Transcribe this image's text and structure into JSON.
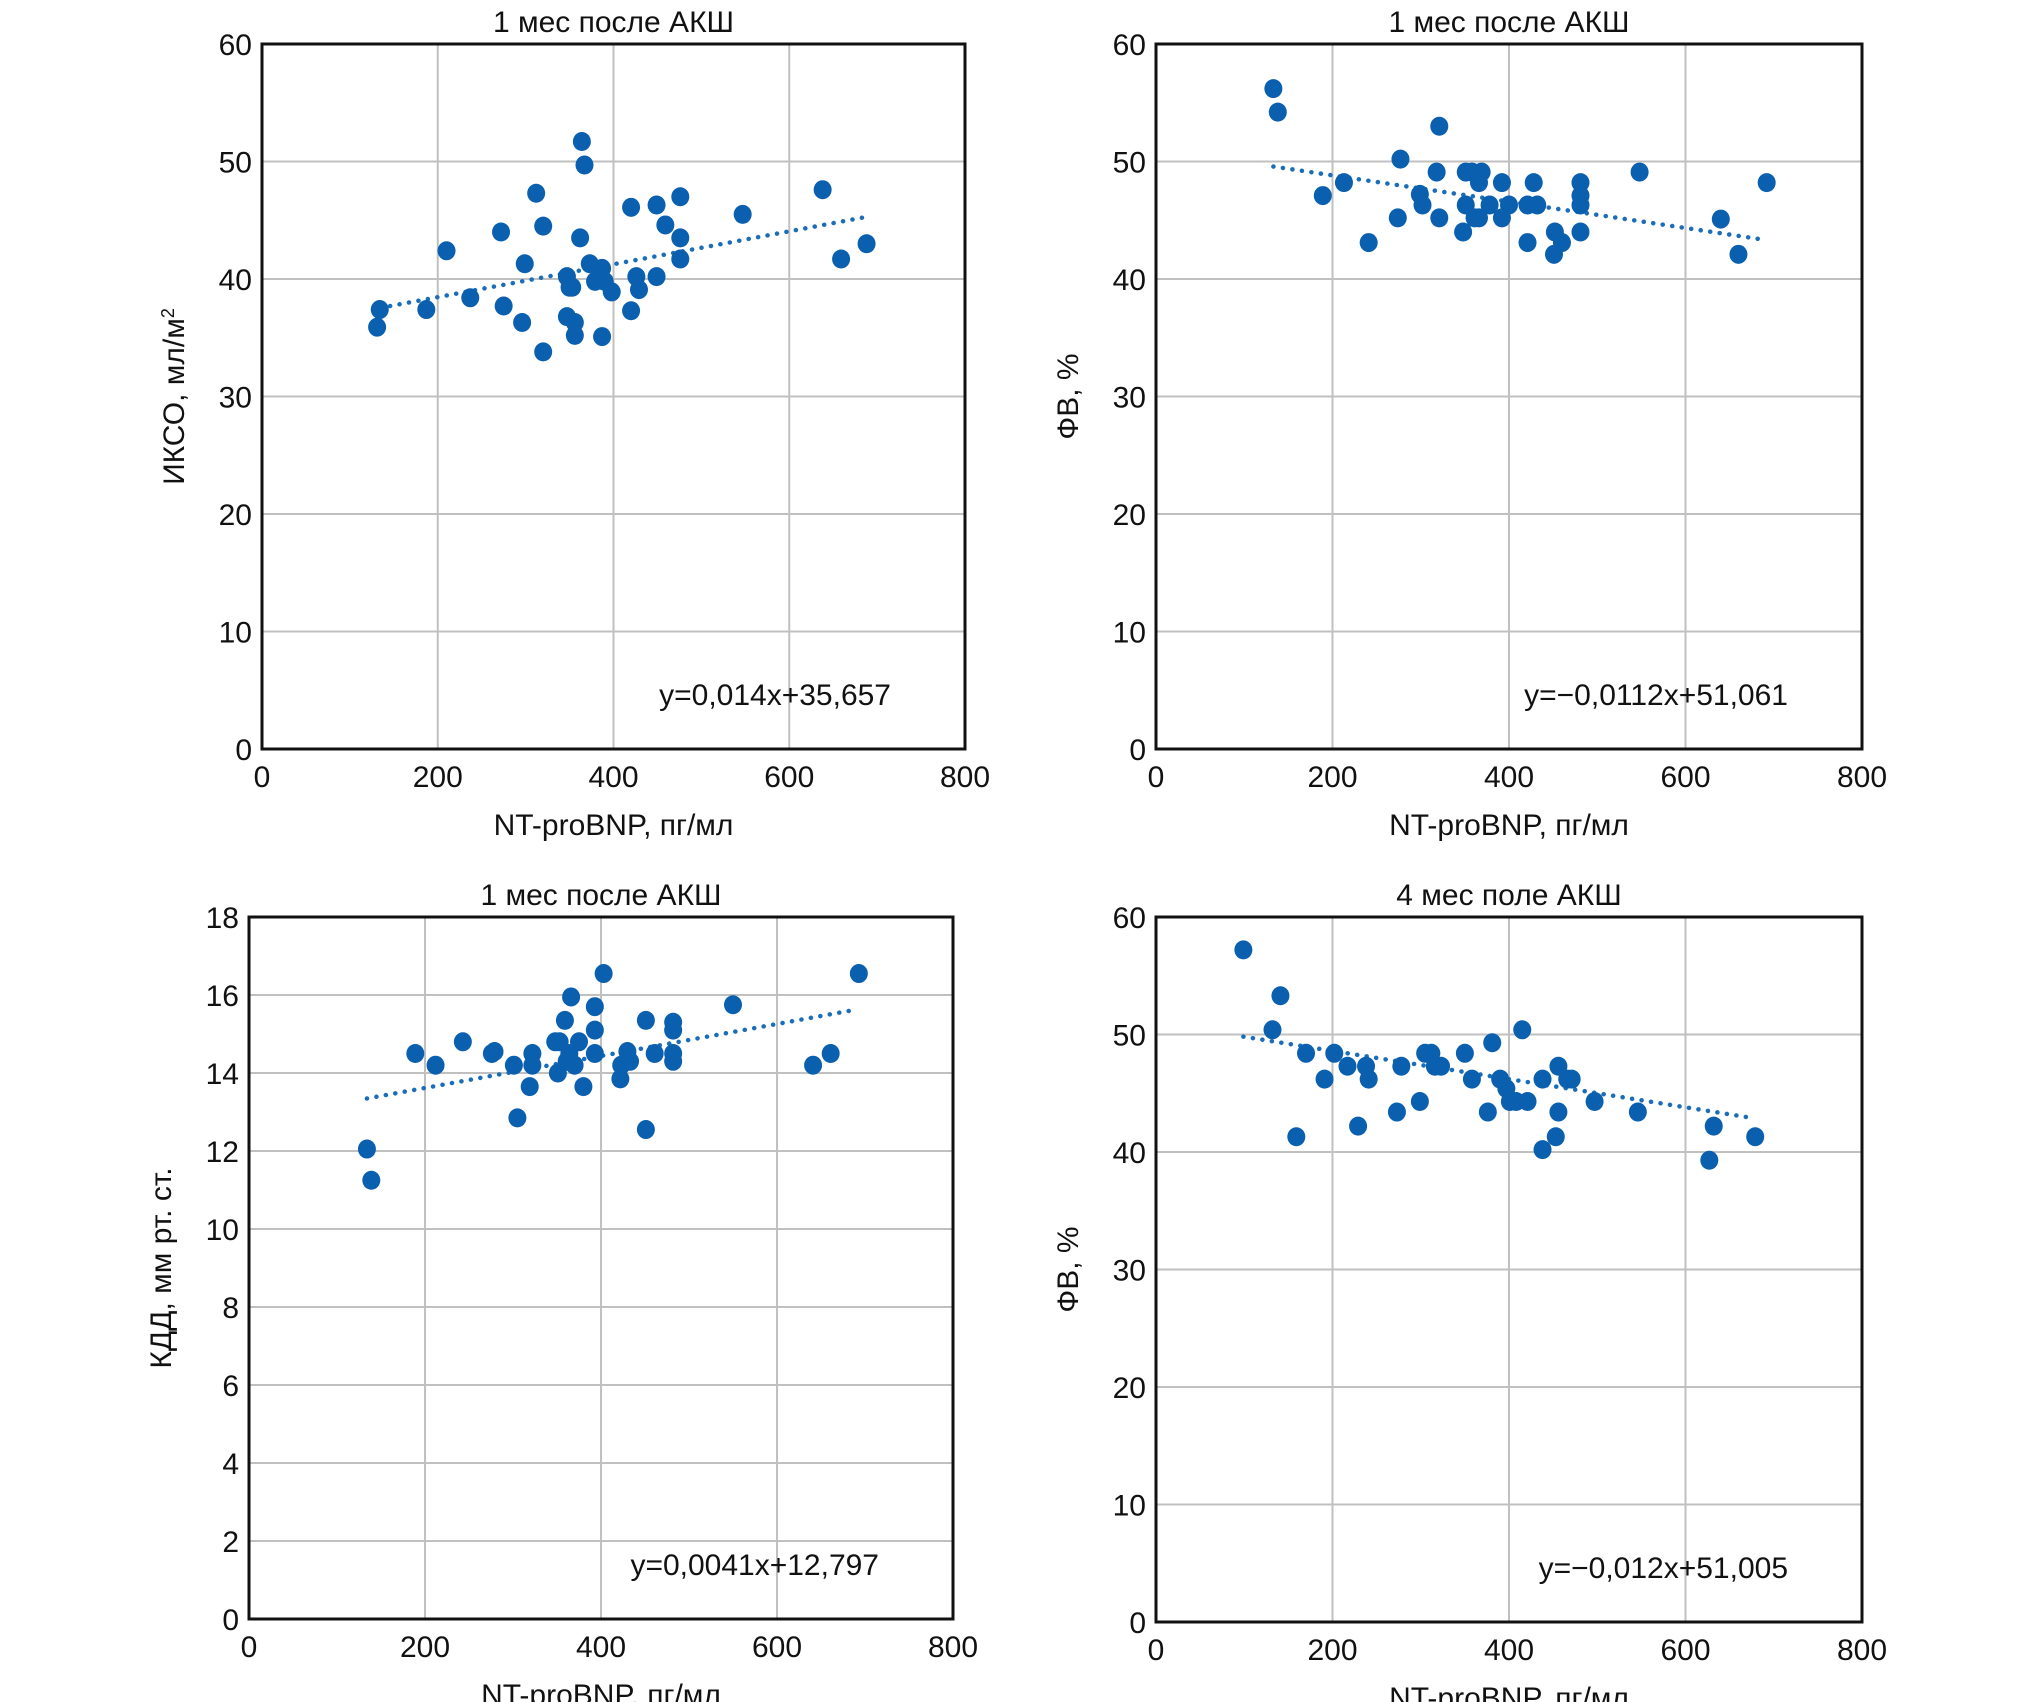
{
  "colors": {
    "points": "#0a5fae",
    "trend": "#1a6db8",
    "grid": "#c0c0c0"
  },
  "chart_data": [
    {
      "type": "scatter",
      "title": "1 мес после АКШ",
      "xlabel": "NT-proBNP, пг/мл",
      "ylabel": "ИКСО, мл/м",
      "ylabel_sup": "2",
      "xlim": [
        0,
        800
      ],
      "ylim": [
        0,
        60
      ],
      "xticks": [
        0,
        200,
        400,
        600,
        800
      ],
      "yticks": [
        0,
        10,
        20,
        30,
        40,
        50,
        60
      ],
      "vgrid": [
        200,
        400,
        600
      ],
      "grid": true,
      "equation": "y=0,014x+35,657",
      "trend": {
        "slope": 0.014,
        "intercept": 35.657,
        "x_from": 135,
        "x_to": 690
      },
      "points": [
        [
          131,
          35.9
        ],
        [
          134,
          37.4
        ],
        [
          187,
          37.4
        ],
        [
          210,
          42.4
        ],
        [
          237,
          38.4
        ],
        [
          272,
          44.0
        ],
        [
          275,
          37.7
        ],
        [
          296,
          36.3
        ],
        [
          299,
          41.3
        ],
        [
          320,
          44.5
        ],
        [
          312,
          47.3
        ],
        [
          320,
          33.8
        ],
        [
          347,
          40.2
        ],
        [
          347,
          36.8
        ],
        [
          350,
          39.3
        ],
        [
          353,
          39.3
        ],
        [
          356,
          36.3
        ],
        [
          356,
          35.2
        ],
        [
          362,
          43.5
        ],
        [
          364,
          51.7
        ],
        [
          367,
          49.7
        ],
        [
          373,
          41.3
        ],
        [
          379,
          39.8
        ],
        [
          384,
          40.6
        ],
        [
          387,
          40.9
        ],
        [
          387,
          35.1
        ],
        [
          390,
          39.8
        ],
        [
          398,
          38.9
        ],
        [
          420,
          37.3
        ],
        [
          420,
          46.1
        ],
        [
          426,
          40.2
        ],
        [
          429,
          39.1
        ],
        [
          449,
          46.3
        ],
        [
          449,
          40.2
        ],
        [
          459,
          44.6
        ],
        [
          476,
          47.0
        ],
        [
          476,
          43.5
        ],
        [
          476,
          41.7
        ],
        [
          547,
          45.5
        ],
        [
          638,
          47.6
        ],
        [
          659,
          41.7
        ],
        [
          688,
          43.0
        ]
      ]
    },
    {
      "type": "scatter",
      "title": "1 мес после АКШ",
      "xlabel": "NT-proBNP, пг/мл",
      "ylabel": "ФВ, %",
      "ylabel_sup": "",
      "xlim": [
        0,
        800
      ],
      "ylim": [
        0,
        60
      ],
      "xticks": [
        0,
        200,
        400,
        600,
        800
      ],
      "yticks": [
        0,
        10,
        20,
        30,
        40,
        50,
        60
      ],
      "vgrid": [
        200,
        400,
        600
      ],
      "grid": true,
      "equation": "y=−0,0112x+51,061",
      "trend": {
        "slope": -0.0112,
        "intercept": 51.061,
        "x_from": 133,
        "x_to": 685
      },
      "points": [
        [
          133,
          56.2
        ],
        [
          138,
          54.2
        ],
        [
          189,
          47.1
        ],
        [
          213,
          48.2
        ],
        [
          241,
          43.1
        ],
        [
          277,
          50.2
        ],
        [
          274,
          45.2
        ],
        [
          299,
          47.2
        ],
        [
          302,
          46.3
        ],
        [
          318,
          49.1
        ],
        [
          321,
          53.0
        ],
        [
          321,
          45.2
        ],
        [
          348,
          44.0
        ],
        [
          351,
          49.1
        ],
        [
          351,
          46.3
        ],
        [
          358,
          49.1
        ],
        [
          361,
          45.2
        ],
        [
          366,
          48.2
        ],
        [
          369,
          49.1
        ],
        [
          366,
          45.2
        ],
        [
          378,
          46.3
        ],
        [
          392,
          48.2
        ],
        [
          392,
          45.2
        ],
        [
          400,
          46.3
        ],
        [
          421,
          46.3
        ],
        [
          421,
          43.1
        ],
        [
          428,
          48.2
        ],
        [
          432,
          46.3
        ],
        [
          452,
          44.0
        ],
        [
          451,
          42.1
        ],
        [
          460,
          43.1
        ],
        [
          481,
          48.2
        ],
        [
          481,
          47.1
        ],
        [
          481,
          46.3
        ],
        [
          481,
          44.0
        ],
        [
          548,
          49.1
        ],
        [
          640,
          45.1
        ],
        [
          660,
          42.1
        ],
        [
          692,
          48.2
        ]
      ]
    },
    {
      "type": "scatter",
      "title": "1 мес после АКШ",
      "xlabel": "NT-proBNP, пг/мл",
      "ylabel": "КДД, мм рт. ст.",
      "ylabel_sup": "",
      "xlim": [
        0,
        800
      ],
      "ylim": [
        0,
        18
      ],
      "xticks": [
        0,
        200,
        400,
        600,
        800
      ],
      "yticks": [
        0,
        2,
        4,
        6,
        8,
        10,
        12,
        14,
        16,
        18
      ],
      "vgrid": [
        200,
        400,
        600
      ],
      "grid": true,
      "equation": "y=0,0041x+12,797",
      "trend": {
        "slope": 0.0041,
        "intercept": 12.797,
        "x_from": 134,
        "x_to": 692
      },
      "points": [
        [
          134,
          12.05
        ],
        [
          139,
          11.25
        ],
        [
          189,
          14.5
        ],
        [
          212,
          14.2
        ],
        [
          243,
          14.8
        ],
        [
          276,
          14.5
        ],
        [
          279,
          14.55
        ],
        [
          301,
          14.2
        ],
        [
          305,
          12.85
        ],
        [
          319,
          13.65
        ],
        [
          322,
          14.5
        ],
        [
          322,
          14.2
        ],
        [
          348,
          14.8
        ],
        [
          351,
          14.0
        ],
        [
          353,
          14.8
        ],
        [
          359,
          15.35
        ],
        [
          361,
          14.3
        ],
        [
          364,
          14.5
        ],
        [
          366,
          15.95
        ],
        [
          370,
          14.2
        ],
        [
          375,
          14.8
        ],
        [
          380,
          13.65
        ],
        [
          393,
          15.7
        ],
        [
          393,
          15.1
        ],
        [
          393,
          14.5
        ],
        [
          403,
          16.55
        ],
        [
          422,
          13.85
        ],
        [
          423,
          14.2
        ],
        [
          430,
          14.55
        ],
        [
          433,
          14.3
        ],
        [
          451,
          15.35
        ],
        [
          451,
          12.55
        ],
        [
          461,
          14.5
        ],
        [
          482,
          15.3
        ],
        [
          482,
          15.1
        ],
        [
          482,
          14.5
        ],
        [
          482,
          14.3
        ],
        [
          550,
          15.75
        ],
        [
          641,
          14.2
        ],
        [
          661,
          14.5
        ],
        [
          693,
          16.55
        ]
      ]
    },
    {
      "type": "scatter",
      "title": "4 мес поле АКШ",
      "xlabel": "NT-proBNP, пг/мл",
      "ylabel": "ФВ, %",
      "ylabel_sup": "",
      "xlim": [
        0,
        800
      ],
      "ylim": [
        0,
        60
      ],
      "xticks": [
        0,
        200,
        400,
        600,
        800
      ],
      "yticks": [
        0,
        10,
        20,
        30,
        40,
        50,
        60
      ],
      "vgrid": [
        200,
        400,
        600
      ],
      "grid": true,
      "equation": "y=−0,012x+51,005",
      "trend": {
        "slope": -0.012,
        "intercept": 51.005,
        "x_from": 99,
        "x_to": 679
      },
      "points": [
        [
          99,
          57.2
        ],
        [
          141,
          53.3
        ],
        [
          132,
          50.4
        ],
        [
          170,
          48.4
        ],
        [
          191,
          46.2
        ],
        [
          159,
          41.3
        ],
        [
          202,
          48.4
        ],
        [
          217,
          47.3
        ],
        [
          229,
          42.2
        ],
        [
          238,
          47.3
        ],
        [
          241,
          46.2
        ],
        [
          273,
          43.4
        ],
        [
          278,
          47.3
        ],
        [
          299,
          44.3
        ],
        [
          305,
          48.4
        ],
        [
          312,
          48.4
        ],
        [
          316,
          47.3
        ],
        [
          323,
          47.3
        ],
        [
          350,
          48.4
        ],
        [
          358,
          46.2
        ],
        [
          376,
          43.4
        ],
        [
          381,
          49.3
        ],
        [
          390,
          46.2
        ],
        [
          397,
          45.4
        ],
        [
          401,
          44.3
        ],
        [
          408,
          44.3
        ],
        [
          415,
          50.4
        ],
        [
          421,
          44.3
        ],
        [
          438,
          46.2
        ],
        [
          438,
          40.2
        ],
        [
          456,
          47.3
        ],
        [
          456,
          43.4
        ],
        [
          453,
          41.3
        ],
        [
          466,
          46.2
        ],
        [
          471,
          46.2
        ],
        [
          497,
          44.3
        ],
        [
          546,
          43.4
        ],
        [
          632,
          42.2
        ],
        [
          627,
          39.3
        ],
        [
          679,
          41.3
        ]
      ]
    }
  ]
}
